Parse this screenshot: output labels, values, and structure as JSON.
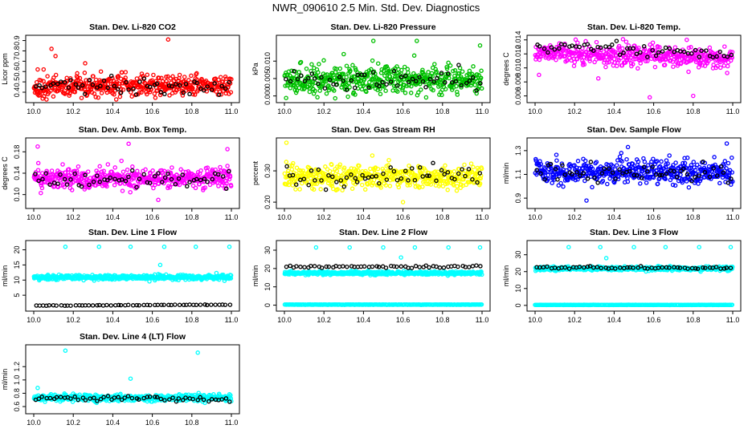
{
  "page": {
    "title": "NWR_090610  2.5 Min. Std. Dev. Diagnostics"
  },
  "colors": {
    "black": "#000000"
  },
  "chart_data": [
    {
      "type": "scatter",
      "title": "Stan. Dev. Li-820 CO2",
      "ylabel": "Licor ppm",
      "color": "#ff0000",
      "xlim": [
        10.0,
        11.0
      ],
      "ylim": [
        0.33,
        0.92
      ],
      "xticks": [
        "10.0",
        "10.2",
        "10.4",
        "10.6",
        "10.8",
        "11.0"
      ],
      "yticks": [
        {
          "v": 0.4,
          "label": "0.4"
        },
        {
          "v": 0.5,
          "label": "0.5"
        },
        {
          "v": 0.6,
          "label": "0.6"
        },
        {
          "v": 0.7,
          "label": "0.7"
        },
        {
          "v": 0.8,
          "label": "0.8"
        },
        {
          "v": 0.9,
          "label": "0.9"
        }
      ],
      "main": {
        "n": 480,
        "base": 0.46,
        "spread": 0.09,
        "trend": 0.02
      },
      "dark": {
        "n": 55,
        "base": 0.46,
        "spread": 0.07,
        "trend": 0.0
      },
      "outliers": [
        [
          10.02,
          0.62
        ],
        [
          10.09,
          0.82
        ],
        [
          10.11,
          0.75
        ],
        [
          10.26,
          0.68
        ],
        [
          10.34,
          0.6
        ],
        [
          10.68,
          0.91
        ],
        [
          10.67,
          0.55
        ],
        [
          10.05,
          0.62
        ]
      ]
    },
    {
      "type": "scatter",
      "title": "Stan. Dev. Li-820 Pressure",
      "ylabel": "kPa",
      "color": "#00c000",
      "xlim": [
        10.0,
        11.0
      ],
      "ylim": [
        -0.001,
        0.0165
      ],
      "xticks": [
        "10.0",
        "10.2",
        "10.4",
        "10.6",
        "10.8",
        "11.0"
      ],
      "yticks": [
        {
          "v": 0.0,
          "label": "0.000"
        },
        {
          "v": 0.005,
          "label": "0.005"
        },
        {
          "v": 0.01,
          "label": "0.010"
        }
      ],
      "main": {
        "n": 480,
        "base": 0.0045,
        "spread": 0.0035,
        "trend": 0.0
      },
      "dark": {
        "n": 55,
        "base": 0.0045,
        "spread": 0.003,
        "trend": 0.0
      },
      "outliers": [
        [
          10.45,
          0.0158
        ],
        [
          10.67,
          0.0158
        ],
        [
          10.99,
          0.0145
        ],
        [
          10.3,
          0.012
        ]
      ]
    },
    {
      "type": "scatter",
      "title": "Stan. Dev. Li-820 Temp.",
      "ylabel": "degrees C",
      "color": "#ff00ff",
      "xlim": [
        10.0,
        11.0
      ],
      "ylim": [
        0.0055,
        0.0142
      ],
      "xticks": [
        "10.0",
        "10.2",
        "10.4",
        "10.6",
        "10.8",
        "11.0"
      ],
      "yticks": [
        {
          "v": 0.006,
          "label": "0.006"
        },
        {
          "v": 0.008,
          "label": "0.008"
        },
        {
          "v": 0.01,
          "label": "0.010"
        },
        {
          "v": 0.012,
          "label": "0.012"
        },
        {
          "v": 0.014,
          "label": "0.014"
        }
      ],
      "main": {
        "n": 480,
        "base": 0.0118,
        "spread": 0.0013,
        "trend": -0.001
      },
      "dark": {
        "n": 55,
        "base": 0.0125,
        "spread": 0.0008,
        "trend": -0.001
      },
      "outliers": [
        [
          10.58,
          0.0058
        ],
        [
          10.8,
          0.006
        ],
        [
          10.02,
          0.009
        ],
        [
          10.32,
          0.0085
        ]
      ]
    },
    {
      "type": "scatter",
      "title": "Stan. Dev. Amb. Box Temp.",
      "ylabel": "degrees C",
      "color": "#ff00ff",
      "xlim": [
        10.0,
        11.0
      ],
      "ylim": [
        0.08,
        0.2
      ],
      "xticks": [
        "10.0",
        "10.2",
        "10.4",
        "10.6",
        "10.8",
        "11.0"
      ],
      "yticks": [
        {
          "v": 0.1,
          "label": "0.10"
        },
        {
          "v": 0.14,
          "label": "0.14"
        },
        {
          "v": 0.18,
          "label": "0.18"
        }
      ],
      "main": {
        "n": 480,
        "base": 0.13,
        "spread": 0.018,
        "trend": 0.0
      },
      "dark": {
        "n": 55,
        "base": 0.128,
        "spread": 0.014,
        "trend": 0.0
      },
      "outliers": [
        [
          10.48,
          0.195
        ],
        [
          10.98,
          0.185
        ],
        [
          10.63,
          0.09
        ],
        [
          10.02,
          0.19
        ]
      ]
    },
    {
      "type": "scatter",
      "title": "Stan. Dev. Gas Stream RH",
      "ylabel": "percent",
      "color": "#ffff00",
      "xlim": [
        10.0,
        11.0
      ],
      "ylim": [
        0.19,
        0.395
      ],
      "xticks": [
        "10.0",
        "10.2",
        "10.4",
        "10.6",
        "10.8",
        "11.0"
      ],
      "yticks": [
        {
          "v": 0.2,
          "label": "0.20"
        },
        {
          "v": 0.3,
          "label": "0.30"
        }
      ],
      "main": {
        "n": 480,
        "base": 0.28,
        "spread": 0.032,
        "trend": 0.0
      },
      "dark": {
        "n": 55,
        "base": 0.28,
        "spread": 0.03,
        "trend": 0.0
      },
      "outliers": [
        [
          10.01,
          0.39
        ],
        [
          10.6,
          0.2
        ]
      ]
    },
    {
      "type": "scatter",
      "title": "Stan. Dev. Sample Flow",
      "ylabel": "ml/min",
      "color": "#0000ff",
      "xlim": [
        10.0,
        11.0
      ],
      "ylim": [
        0.84,
        1.38
      ],
      "xticks": [
        "10.0",
        "10.2",
        "10.4",
        "10.6",
        "10.8",
        "11.0"
      ],
      "yticks": [
        {
          "v": 0.9,
          "label": "0.9"
        },
        {
          "v": 1.1,
          "label": "1.1"
        },
        {
          "v": 1.3,
          "label": "1.3"
        }
      ],
      "main": {
        "n": 480,
        "base": 1.12,
        "spread": 0.09,
        "trend": 0.0
      },
      "dark": {
        "n": 55,
        "base": 1.12,
        "spread": 0.08,
        "trend": 0.0
      },
      "outliers": [
        [
          10.97,
          1.36
        ],
        [
          10.47,
          1.33
        ],
        [
          10.26,
          0.88
        ]
      ]
    },
    {
      "type": "scatter",
      "title": "Stan. Dev. Line 1 Flow",
      "ylabel": "ml/min",
      "color": "#00ffff",
      "xlim": [
        10.0,
        11.0
      ],
      "ylim": [
        0.8,
        22.0
      ],
      "xticks": [
        "10.0",
        "10.2",
        "10.4",
        "10.6",
        "10.8",
        "11.0"
      ],
      "yticks": [
        {
          "v": 5,
          "label": "5"
        },
        {
          "v": 10,
          "label": "10"
        },
        {
          "v": 15,
          "label": "15"
        },
        {
          "v": 20,
          "label": "20"
        }
      ],
      "main": {
        "n": 480,
        "base": 10.9,
        "spread": 0.7,
        "trend": 0.0
      },
      "dark": {
        "n": 55,
        "base": 1.7,
        "spread": 0.1,
        "trend": 0.3
      },
      "outliers": [
        [
          10.16,
          21.0
        ],
        [
          10.33,
          21.0
        ],
        [
          10.49,
          21.0
        ],
        [
          10.66,
          21.0
        ],
        [
          10.82,
          21.0
        ],
        [
          10.99,
          21.0
        ],
        [
          10.64,
          15.0
        ]
      ]
    },
    {
      "type": "scatter",
      "title": "Stan. Dev. Line 2 Flow",
      "ylabel": "ml/min",
      "color": "#00ffff",
      "xlim": [
        10.0,
        11.0
      ],
      "ylim": [
        -1.5,
        33.5
      ],
      "xticks": [
        "10.0",
        "10.2",
        "10.4",
        "10.6",
        "10.8",
        "11.0"
      ],
      "yticks": [
        {
          "v": 0,
          "label": "0"
        },
        {
          "v": 10,
          "label": "10"
        },
        {
          "v": 20,
          "label": "20"
        },
        {
          "v": 30,
          "label": "30"
        }
      ],
      "main": {
        "n": 480,
        "base": 17.5,
        "spread": 0.8,
        "trend": 0.0
      },
      "dark": {
        "n": 55,
        "base": 21.0,
        "spread": 0.6,
        "trend": 0.0
      },
      "band": {
        "n": 240,
        "y": 0.3,
        "spread": 0.15
      },
      "outliers": [
        [
          10.16,
          31.5
        ],
        [
          10.33,
          31.5
        ],
        [
          10.5,
          31.5
        ],
        [
          10.66,
          31.5
        ],
        [
          10.83,
          31.5
        ],
        [
          10.99,
          31.5
        ],
        [
          10.59,
          26.0
        ]
      ]
    },
    {
      "type": "scatter",
      "title": "Stan. Dev. Line 3 Flow",
      "ylabel": "ml/min",
      "color": "#00ffff",
      "xlim": [
        10.0,
        11.0
      ],
      "ylim": [
        -1.5,
        36.5
      ],
      "xticks": [
        "10.0",
        "10.2",
        "10.4",
        "10.6",
        "10.8",
        "11.0"
      ],
      "yticks": [
        {
          "v": 0,
          "label": "0"
        },
        {
          "v": 10,
          "label": "10"
        },
        {
          "v": 20,
          "label": "20"
        },
        {
          "v": 30,
          "label": "30"
        }
      ],
      "main": {
        "n": 480,
        "base": 21.8,
        "spread": 1.0,
        "trend": 0.0
      },
      "dark": {
        "n": 55,
        "base": 22.3,
        "spread": 0.7,
        "trend": 0.0
      },
      "band": {
        "n": 240,
        "y": 0.3,
        "spread": 0.15
      },
      "outliers": [
        [
          10.17,
          34.5
        ],
        [
          10.33,
          34.5
        ],
        [
          10.5,
          34.5
        ],
        [
          10.66,
          34.5
        ],
        [
          10.83,
          34.5
        ],
        [
          10.99,
          34.5
        ],
        [
          10.36,
          28.0
        ]
      ]
    },
    {
      "type": "scatter",
      "title": "Stan. Dev. Line 4 (LT) Flow",
      "ylabel": "ml/min",
      "color": "#00ffff",
      "xlim": [
        10.0,
        11.0
      ],
      "ylim": [
        0.54,
        1.48
      ],
      "xticks": [
        "10.0",
        "10.2",
        "10.4",
        "10.6",
        "10.8",
        "11.0"
      ],
      "yticks": [
        {
          "v": 0.6,
          "label": "0.6"
        },
        {
          "v": 0.8,
          "label": "0.8"
        },
        {
          "v": 1.0,
          "label": "1.0"
        },
        {
          "v": 1.2,
          "label": "1.2"
        }
      ],
      "main": {
        "n": 480,
        "base": 0.73,
        "spread": 0.045,
        "trend": 0.0
      },
      "dark": {
        "n": 55,
        "base": 0.72,
        "spread": 0.04,
        "trend": 0.0
      },
      "outliers": [
        [
          10.16,
          1.44
        ],
        [
          10.83,
          1.41
        ],
        [
          10.49,
          1.02
        ],
        [
          10.02,
          0.88
        ]
      ]
    }
  ]
}
